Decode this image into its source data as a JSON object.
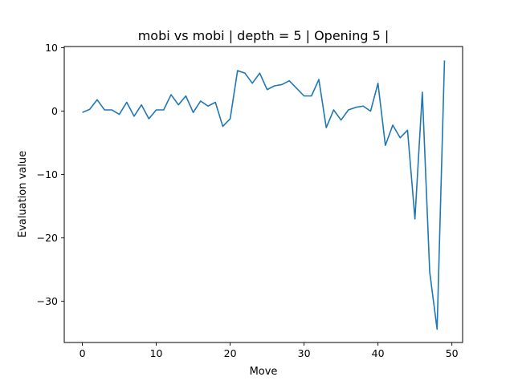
{
  "chart_data": {
    "type": "line",
    "title": "mobi vs mobi | depth = 5 | Opening 5 |",
    "xlabel": "Move",
    "ylabel": "Evaluation value",
    "xlim": [
      -2.45,
      51.45
    ],
    "ylim": [
      -36.5,
      10.2
    ],
    "xticks": [
      0,
      10,
      20,
      30,
      40,
      50
    ],
    "yticks": [
      10,
      0,
      -10,
      -20,
      -30
    ],
    "ytick_labels": [
      "10",
      "0",
      "−10",
      "−20",
      "−30"
    ],
    "grid": false,
    "legend": "none",
    "line_color": "#1f77b4",
    "series": [
      {
        "x": [
          0,
          1,
          2,
          3,
          4,
          5,
          6,
          7,
          8,
          9,
          10,
          11,
          12,
          13,
          14,
          15,
          16,
          17,
          18,
          19,
          20,
          21,
          22,
          23,
          24,
          25,
          26,
          27,
          28,
          29,
          30,
          31,
          32,
          33,
          34,
          35,
          36,
          37,
          38,
          39,
          40,
          41,
          42,
          43,
          44,
          45,
          46,
          47,
          48,
          49
        ],
        "values": [
          -0.2,
          0.3,
          1.8,
          0.2,
          0.2,
          -0.5,
          1.4,
          -0.8,
          1.0,
          -1.2,
          0.2,
          0.2,
          2.6,
          1.0,
          2.4,
          -0.2,
          1.6,
          0.8,
          1.4,
          -2.4,
          -1.2,
          6.4,
          6.0,
          4.4,
          6.0,
          3.4,
          4.0,
          4.2,
          4.8,
          3.6,
          2.4,
          2.4,
          5.0,
          -2.6,
          0.2,
          -1.4,
          0.2,
          0.6,
          0.8,
          0.0,
          4.4,
          -5.4,
          -2.2,
          -4.2,
          -3.0,
          -17.0,
          3.0,
          -25.4,
          -34.4,
          8.0
        ]
      }
    ]
  }
}
